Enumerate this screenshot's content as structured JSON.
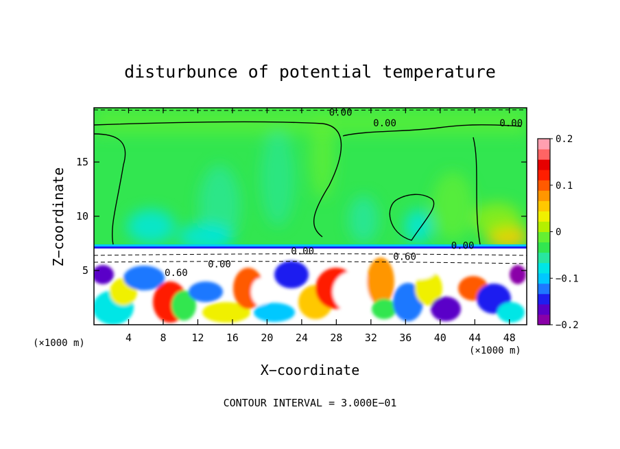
{
  "chart_data": {
    "type": "heatmap",
    "title": "disturbunce of potential temperature",
    "xlabel": "X−coordinate",
    "ylabel": "Z−coordinate",
    "x_unit_left": "(×1000 m)",
    "x_unit_right": "(×1000 m)",
    "xlim": [
      0,
      50
    ],
    "ylim": [
      0,
      20
    ],
    "x_ticks": [
      4,
      8,
      12,
      16,
      20,
      24,
      28,
      32,
      36,
      40,
      44,
      48
    ],
    "y_ticks": [
      5,
      10,
      15
    ],
    "grid": false,
    "colorbar": {
      "placement": "right",
      "min": -0.2,
      "max": 0.2,
      "ticks": [
        0.2,
        0.1,
        0,
        -0.1,
        -0.2
      ],
      "tick_labels": [
        "0.2",
        "0.1",
        "0",
        "−0.1",
        "−0.2"
      ],
      "colors": [
        "#8a00a8",
        "#5a00c8",
        "#1e1ef0",
        "#1e78ff",
        "#00c8ff",
        "#00e6e6",
        "#28e6a0",
        "#32e650",
        "#64f032",
        "#b4f000",
        "#f0f000",
        "#ffc800",
        "#ff9600",
        "#ff5a00",
        "#ff1e00",
        "#e60000",
        "#ff6464",
        "#ff9fb0"
      ]
    },
    "contour_labels": [
      {
        "text": "0.00",
        "x": 28.5,
        "z": 19.6
      },
      {
        "text": "0.00",
        "x": 33.6,
        "z": 18.6
      },
      {
        "text": "0.00",
        "x": 48.2,
        "z": 18.6
      },
      {
        "text": "0.00",
        "x": 42.6,
        "z": 7.3
      },
      {
        "text": "0.00",
        "x": 24.1,
        "z": 6.8
      },
      {
        "text": "0.60",
        "x": 35.9,
        "z": 6.3
      },
      {
        "text": "0.00",
        "x": 14.5,
        "z": 5.6
      },
      {
        "text": "0.60",
        "x": 9.5,
        "z": 4.8
      }
    ],
    "annotation": "CONTOUR INTERVAL = 3.000E−01"
  }
}
